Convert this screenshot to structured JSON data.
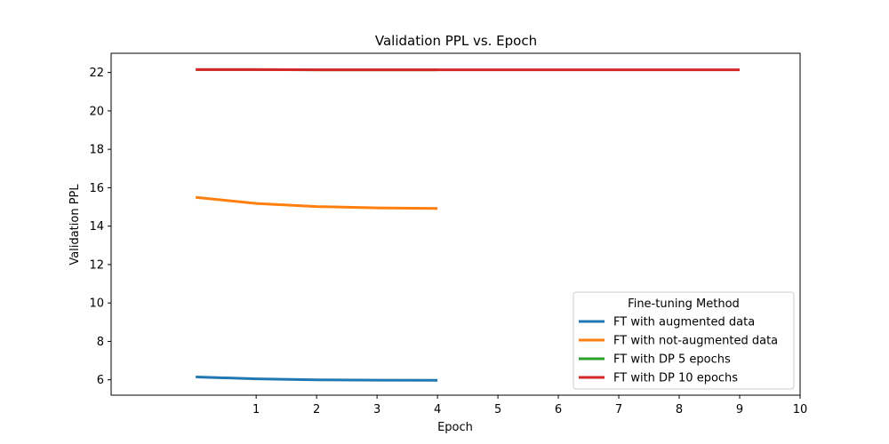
{
  "chart_data": {
    "type": "line",
    "title": "Validation PPL  vs. Epoch",
    "xlabel": "Epoch",
    "ylabel": "Validation PPL",
    "xlim": [
      -1.4,
      10
    ],
    "ylim": [
      5.2,
      23.0
    ],
    "xticks": [
      1,
      2,
      3,
      4,
      5,
      6,
      7,
      8,
      9,
      10
    ],
    "yticks": [
      6,
      8,
      10,
      12,
      14,
      16,
      18,
      20,
      22
    ],
    "grid": false,
    "legend": {
      "title": "Fine-tuning Method",
      "placement": "bottom-right"
    },
    "series": [
      {
        "name": "FT with augmented data",
        "color": "#1f77b4",
        "x": [
          0,
          1,
          2,
          3,
          4
        ],
        "y": [
          6.15,
          6.05,
          6.0,
          5.98,
          5.97
        ]
      },
      {
        "name": "FT with not-augmented data",
        "color": "#ff7f0e",
        "x": [
          0,
          1,
          2,
          3,
          4
        ],
        "y": [
          15.5,
          15.18,
          15.02,
          14.95,
          14.92
        ]
      },
      {
        "name": "FT with DP 5 epochs",
        "color": "#2ca02c",
        "x": [
          0,
          1,
          2,
          3,
          4
        ],
        "y": [
          22.15,
          22.15,
          22.14,
          22.14,
          22.14
        ]
      },
      {
        "name": "FT with DP 10 epochs",
        "color": "#d62728",
        "x": [
          0,
          1,
          2,
          3,
          4,
          5,
          6,
          7,
          8,
          9
        ],
        "y": [
          22.15,
          22.15,
          22.14,
          22.14,
          22.14,
          22.14,
          22.14,
          22.14,
          22.14,
          22.14
        ]
      }
    ]
  }
}
